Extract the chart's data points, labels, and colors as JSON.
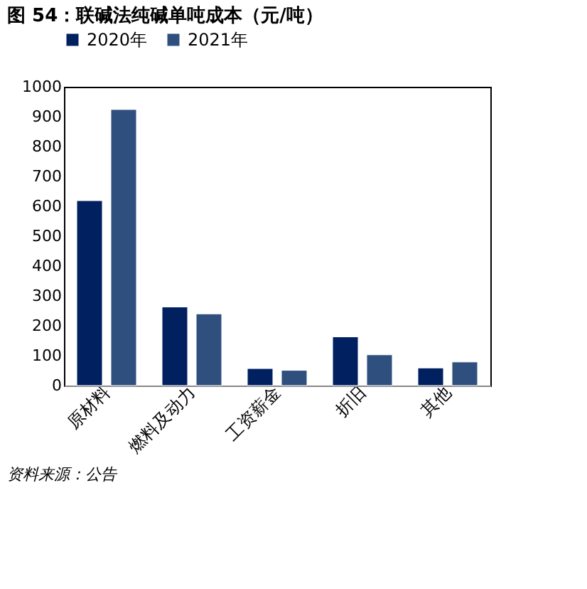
{
  "chart_data": {
    "type": "bar",
    "title": "图 54：联碱法纯碱单吨成本（元/吨）",
    "categories": [
      "原材料",
      "燃料及动力",
      "工资薪金",
      "折旧",
      "其他"
    ],
    "series": [
      {
        "name": "2020年",
        "color": "#002060",
        "values": [
          619,
          263,
          57,
          163,
          59
        ]
      },
      {
        "name": "2021年",
        "color": "#2f4f7f",
        "values": [
          924,
          240,
          51,
          103,
          79
        ]
      }
    ],
    "ylim": [
      0,
      1000
    ],
    "yticks": [
      0,
      100,
      200,
      300,
      400,
      500,
      600,
      700,
      800,
      900,
      1000
    ],
    "grid": false,
    "legend": "top",
    "annotations": [
      "资料来源：公告"
    ]
  }
}
